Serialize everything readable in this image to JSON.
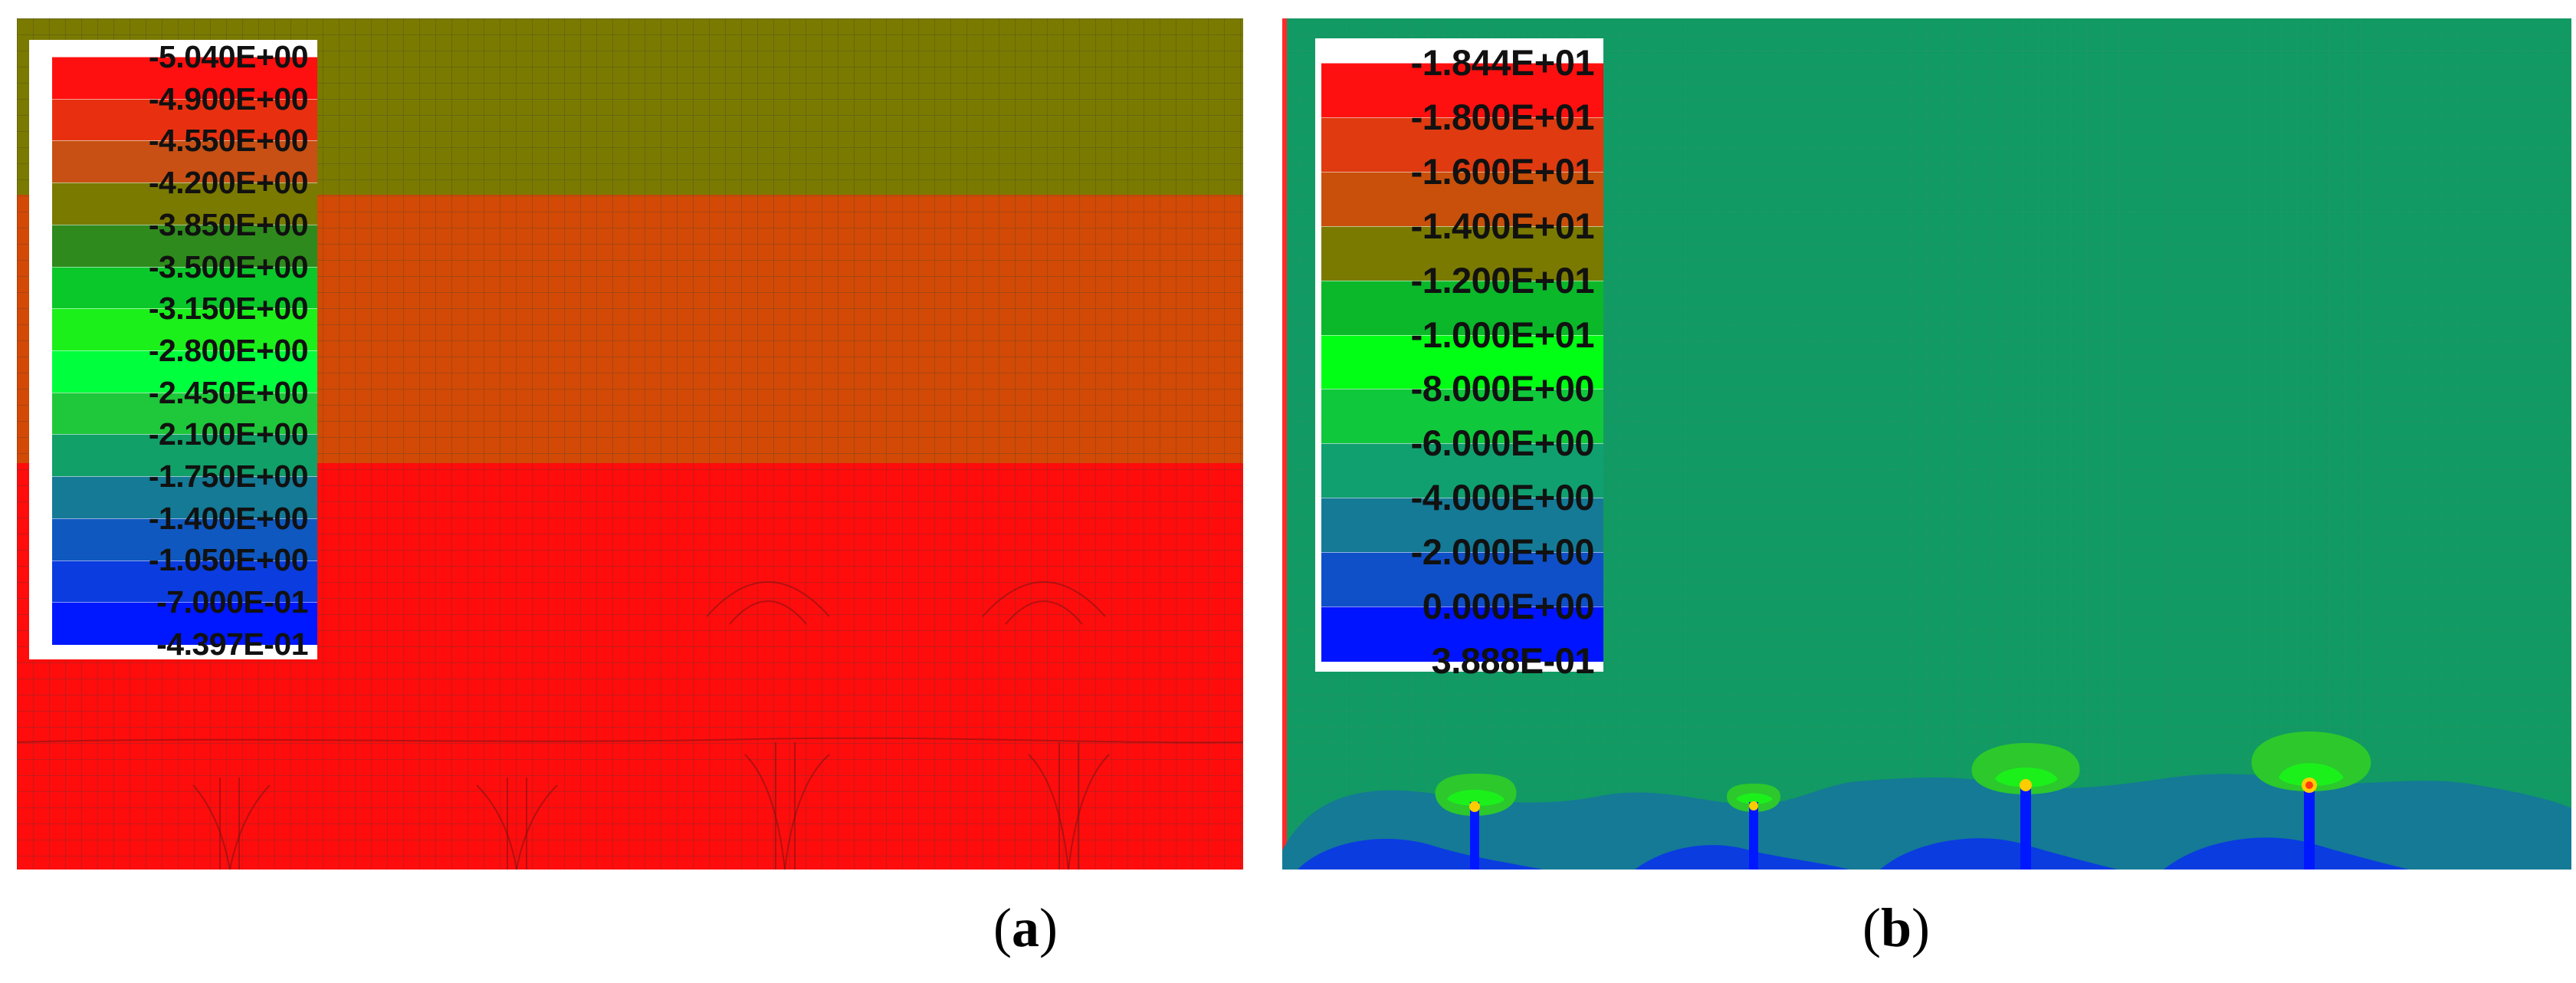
{
  "panels": [
    {
      "id": "a",
      "caption_letter": "a",
      "legend": {
        "labels": [
          "-5.040E+00",
          "-4.900E+00",
          "-4.550E+00",
          "-4.200E+00",
          "-3.850E+00",
          "-3.500E+00",
          "-3.150E+00",
          "-2.800E+00",
          "-2.450E+00",
          "-2.100E+00",
          "-1.750E+00",
          "-1.400E+00",
          "-1.050E+00",
          "-7.000E-01",
          "-4.397E-01"
        ],
        "colors": [
          "#ff1010",
          "#e83010",
          "#c85014",
          "#7a7a00",
          "#2e8a1c",
          "#0ac82a",
          "#1bf01b",
          "#00ff3c",
          "#1ec83a",
          "#11a068",
          "#147a96",
          "#0f58c0",
          "#0a3ce0",
          "#0018ff"
        ]
      },
      "field_colors": {
        "top": "#7a7a00",
        "middle": "#d24a05",
        "bottom": "#ff0c0c"
      }
    },
    {
      "id": "b",
      "caption_letter": "b",
      "legend": {
        "labels": [
          "-1.844E+01",
          "-1.800E+01",
          "-1.600E+01",
          "-1.400E+01",
          "-1.200E+01",
          "-1.000E+01",
          "-8.000E+00",
          "-6.000E+00",
          "-4.000E+00",
          "-2.000E+00",
          "0.000E+00",
          "3.888E-01"
        ],
        "colors": [
          "#ff1010",
          "#e03a10",
          "#c8500a",
          "#7a7a00",
          "#0ab82a",
          "#00ff14",
          "#10c83c",
          "#10a070",
          "#147a96",
          "#0f50c8",
          "#0014ff"
        ]
      },
      "field_colors": {
        "background": "#119a63",
        "lower_zone": "#147a96",
        "core": "#0a3ce0",
        "halo": "#1bf01b",
        "hotspot": "#ffcc00"
      }
    }
  ]
}
